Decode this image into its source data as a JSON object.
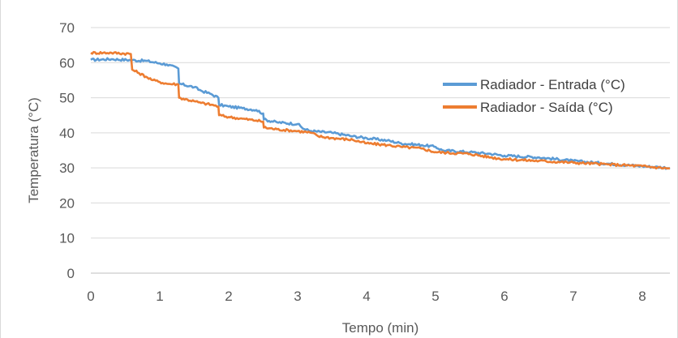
{
  "chart_data": {
    "type": "line",
    "title": "",
    "xlabel": "Tempo (min)",
    "ylabel": "Temperatura (°C)",
    "xlim": [
      0,
      8.4
    ],
    "ylim": [
      0,
      70
    ],
    "x_ticks": [
      0,
      1,
      2,
      3,
      4,
      5,
      6,
      7,
      8
    ],
    "y_ticks": [
      0,
      10,
      20,
      30,
      40,
      50,
      60,
      70
    ],
    "grid": true,
    "legend_position": "right",
    "series": [
      {
        "name": "Radiador - Entrada (°C)",
        "color": "#5B9BD5",
        "x": [
          0,
          0.3,
          0.6,
          0.8,
          1.0,
          1.1,
          1.27,
          1.28,
          1.5,
          1.6,
          1.75,
          1.85,
          1.86,
          2.0,
          2.2,
          2.4,
          2.5,
          2.51,
          2.7,
          3.0,
          3.1,
          3.2,
          3.5,
          3.8,
          4.0,
          4.3,
          4.5,
          4.8,
          5.0,
          5.1,
          5.5,
          5.8,
          6.0,
          6.5,
          7.0,
          7.5,
          8.0,
          8.4
        ],
        "y": [
          60.8,
          61.0,
          60.7,
          60.5,
          59.8,
          59.5,
          58.3,
          54.0,
          53.0,
          52.0,
          51.0,
          50.0,
          48.0,
          47.5,
          47.0,
          46.5,
          45.5,
          43.8,
          43.0,
          42.5,
          41.0,
          40.5,
          40.0,
          39.0,
          38.5,
          37.8,
          37.0,
          36.5,
          36.0,
          35.0,
          34.5,
          34.0,
          33.5,
          33.0,
          32.0,
          31.2,
          30.5,
          30.0
        ]
      },
      {
        "name": "Radiador - Saída (°C)",
        "color": "#ED7D31",
        "x": [
          0,
          0.3,
          0.58,
          0.6,
          0.7,
          0.8,
          0.9,
          1.0,
          1.1,
          1.27,
          1.28,
          1.5,
          1.6,
          1.75,
          1.85,
          1.86,
          2.0,
          2.2,
          2.4,
          2.5,
          2.51,
          2.7,
          3.0,
          3.2,
          3.3,
          3.5,
          3.8,
          4.0,
          4.3,
          4.5,
          4.8,
          5.0,
          5.5,
          5.8,
          6.0,
          6.5,
          7.0,
          7.5,
          8.0,
          8.4
        ],
        "y": [
          62.8,
          62.8,
          62.5,
          58.0,
          57.0,
          56.0,
          55.0,
          54.5,
          54.0,
          53.8,
          50.0,
          49.0,
          48.5,
          48.0,
          47.5,
          45.0,
          44.5,
          44.0,
          43.5,
          43.2,
          41.5,
          41.0,
          40.5,
          40.0,
          39.0,
          38.5,
          38.0,
          37.0,
          36.5,
          36.0,
          35.5,
          34.5,
          34.0,
          33.0,
          32.5,
          32.0,
          31.5,
          31.0,
          30.5,
          29.8
        ]
      }
    ]
  }
}
